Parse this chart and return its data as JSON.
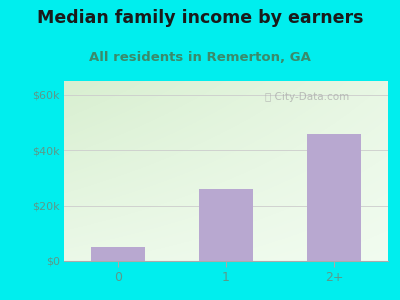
{
  "title": "Median family income by earners",
  "subtitle": "All residents in Remerton, GA",
  "categories": [
    "0",
    "1",
    "2+"
  ],
  "values": [
    5000,
    26000,
    46000
  ],
  "bar_color": "#b8a8d0",
  "outer_bg": "#00eeee",
  "inner_bg_topleft": "#d8efd0",
  "inner_bg_bottomright": "#f8fff8",
  "title_color": "#1a1a1a",
  "subtitle_color": "#3a8a6a",
  "tick_label_color": "#5a9a8a",
  "yticks": [
    0,
    20000,
    40000,
    60000
  ],
  "ytick_labels": [
    "$0",
    "$20k",
    "$40k",
    "$60k"
  ],
  "ylim": [
    0,
    65000
  ],
  "title_fontsize": 12.5,
  "subtitle_fontsize": 9.5
}
